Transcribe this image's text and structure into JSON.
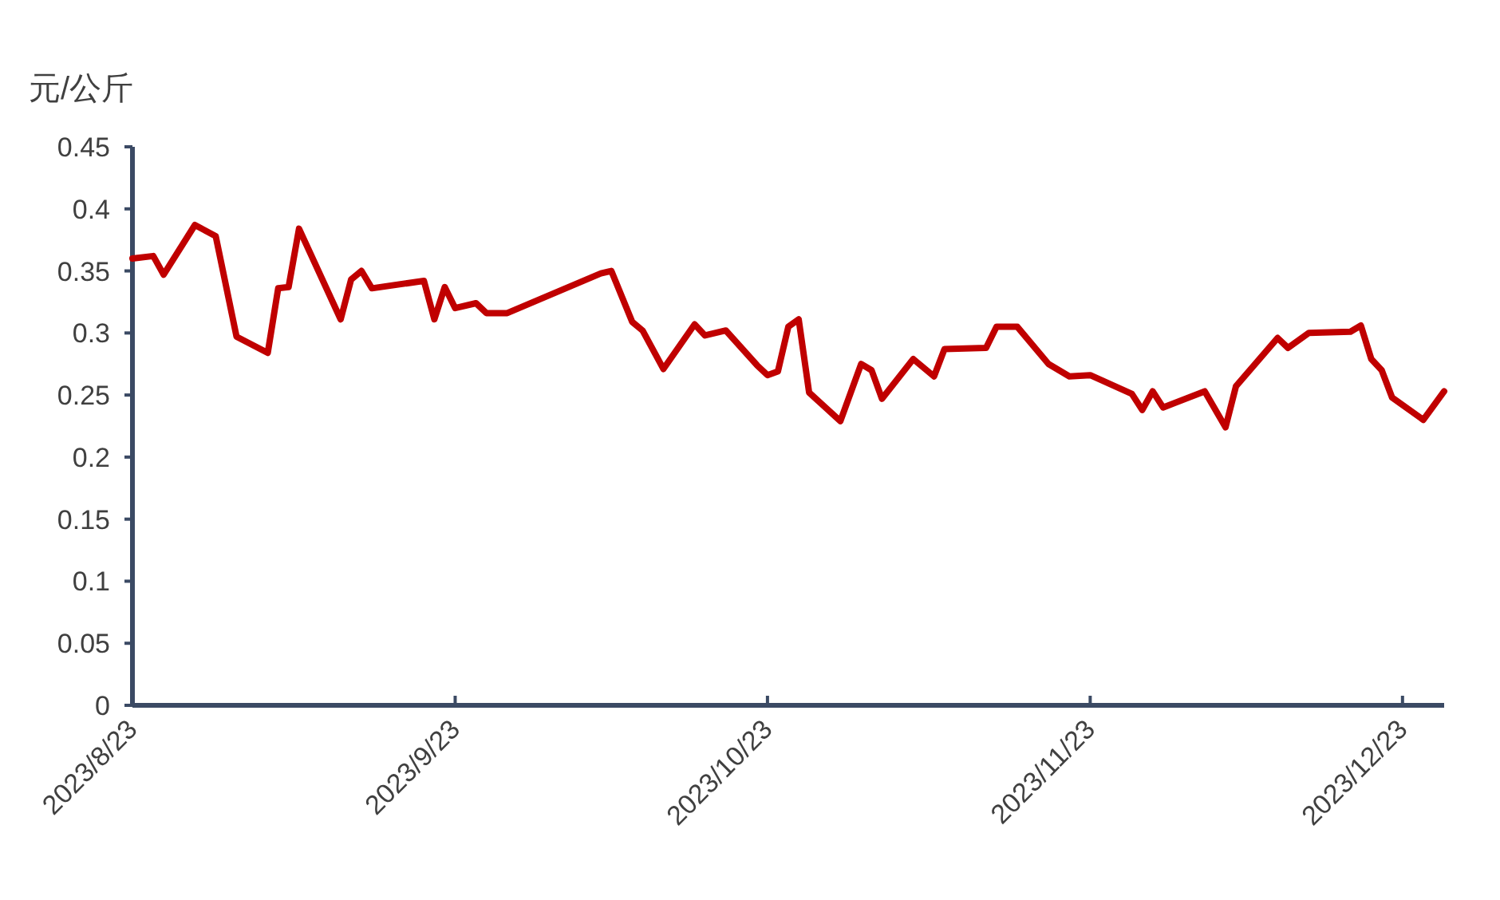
{
  "chart_data": {
    "type": "line",
    "ylabel": "元/公斤",
    "x": [
      "2023-08-23",
      "2023-08-25",
      "2023-08-26",
      "2023-08-29",
      "2023-08-31",
      "2023-09-02",
      "2023-09-05",
      "2023-09-06",
      "2023-09-07",
      "2023-09-08",
      "2023-09-12",
      "2023-09-13",
      "2023-09-14",
      "2023-09-15",
      "2023-09-20",
      "2023-09-21",
      "2023-09-22",
      "2023-09-23",
      "2023-09-25",
      "2023-09-26",
      "2023-09-28",
      "2023-10-07",
      "2023-10-08",
      "2023-10-10",
      "2023-10-11",
      "2023-10-13",
      "2023-10-16",
      "2023-10-17",
      "2023-10-19",
      "2023-10-22",
      "2023-10-23",
      "2023-10-24",
      "2023-10-25",
      "2023-10-26",
      "2023-10-27",
      "2023-10-30",
      "2023-11-01",
      "2023-11-02",
      "2023-11-03",
      "2023-11-06",
      "2023-11-08",
      "2023-11-09",
      "2023-11-13",
      "2023-11-14",
      "2023-11-16",
      "2023-11-19",
      "2023-11-21",
      "2023-11-23",
      "2023-11-27",
      "2023-11-28",
      "2023-11-29",
      "2023-11-30",
      "2023-12-04",
      "2023-12-06",
      "2023-12-07",
      "2023-12-11",
      "2023-12-12",
      "2023-12-14",
      "2023-12-18",
      "2023-12-19",
      "2023-12-20",
      "2023-12-21",
      "2023-12-22",
      "2023-12-25",
      "2023-12-27"
    ],
    "series": [
      {
        "color": "#c00000",
        "values": [
          0.36,
          0.362,
          0.347,
          0.387,
          0.378,
          0.297,
          0.284,
          0.336,
          0.337,
          0.384,
          0.311,
          0.343,
          0.35,
          0.336,
          0.342,
          0.311,
          0.337,
          0.32,
          0.324,
          0.316,
          0.316,
          0.348,
          0.35,
          0.309,
          0.302,
          0.271,
          0.307,
          0.298,
          0.302,
          0.274,
          0.266,
          0.269,
          0.305,
          0.311,
          0.252,
          0.229,
          0.275,
          0.27,
          0.247,
          0.279,
          0.265,
          0.287,
          0.288,
          0.305,
          0.305,
          0.275,
          0.265,
          0.266,
          0.251,
          0.238,
          0.253,
          0.24,
          0.253,
          0.224,
          0.257,
          0.296,
          0.288,
          0.3,
          0.301,
          0.306,
          0.279,
          0.27,
          0.248,
          0.23,
          0.253
        ]
      }
    ],
    "xlim": [
      "2023-08-23",
      "2023-12-27"
    ],
    "xticks": [
      {
        "value": "2023-08-23",
        "label": "2023/8/23"
      },
      {
        "value": "2023-09-23",
        "label": "2023/9/23"
      },
      {
        "value": "2023-10-23",
        "label": "2023/10/23"
      },
      {
        "value": "2023-11-23",
        "label": "2023/11/23"
      },
      {
        "value": "2023-12-23",
        "label": "2023/12/23"
      }
    ],
    "ylim": [
      0,
      0.45
    ],
    "yticks": [
      0,
      0.05,
      0.1,
      0.15,
      0.2,
      0.25,
      0.3,
      0.35,
      0.4,
      0.45
    ],
    "line_style": "solid"
  }
}
